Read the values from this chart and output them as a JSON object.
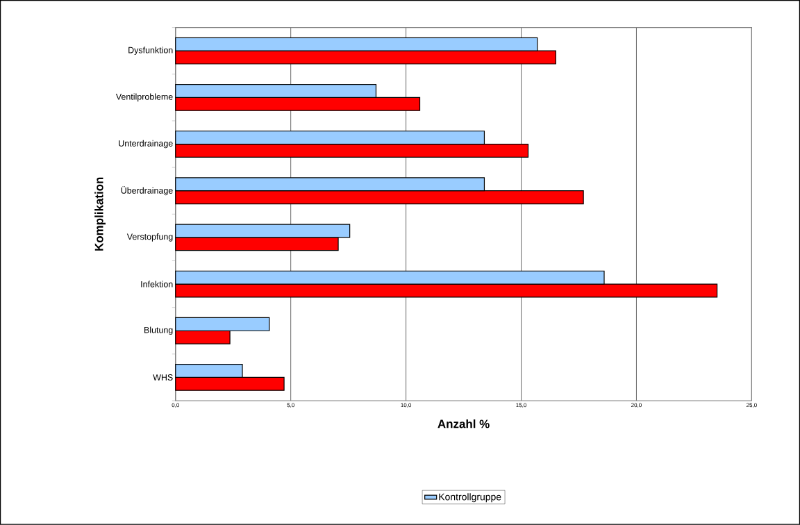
{
  "chart_data": {
    "type": "bar",
    "orientation": "horizontal",
    "xlabel": "Anzahl %",
    "ylabel": "Komplikation",
    "categories": [
      "Dysfunktion",
      "Ventilprobleme",
      "Unterdrainage",
      "Überdrainage",
      "Verstopfung",
      "Infektion",
      "Blutung",
      "WHS"
    ],
    "series": [
      {
        "color": "#ff0000",
        "values": [
          16.5,
          10.6,
          15.3,
          17.7,
          7.06,
          23.5,
          2.36,
          4.71
        ]
      },
      {
        "name": "Kontrollgruppe",
        "color": "#99ccff",
        "values": [
          15.7,
          8.7,
          13.4,
          13.4,
          7.56,
          18.6,
          4.07,
          2.9
        ]
      }
    ],
    "xlim": [
      0,
      25
    ],
    "xticks": [
      {
        "value": 0,
        "label": "0,0"
      },
      {
        "value": 5,
        "label": "5,0"
      },
      {
        "value": 10,
        "label": "10,0"
      },
      {
        "value": 15,
        "label": "15,0"
      },
      {
        "value": 20,
        "label": "20,0"
      },
      {
        "value": 25,
        "label": "25,0"
      }
    ],
    "grid": "x",
    "legend": "bottom"
  }
}
